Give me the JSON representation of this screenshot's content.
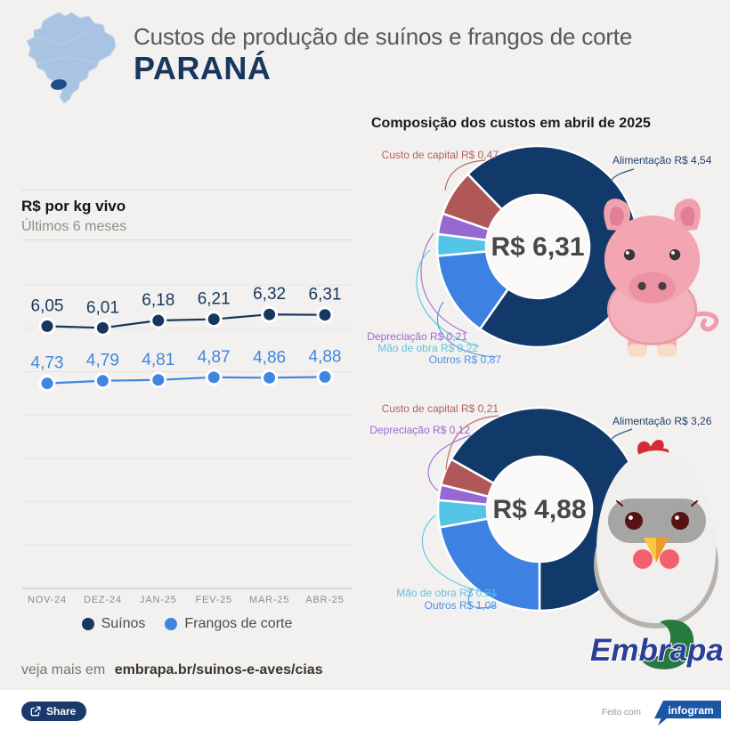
{
  "header": {
    "title": "Custos de produção de suínos e frangos de corte",
    "region": "PARANÁ"
  },
  "left_panel": {
    "title": "R$ por kg vivo",
    "subtitle": "Últimos 6 meses"
  },
  "right_panel": {
    "heading": "Composição dos custos em abril de 2025"
  },
  "chart_data": [
    {
      "type": "line",
      "title": "R$ por kg vivo",
      "subtitle": "Últimos 6 meses",
      "categories": [
        "NOV-24",
        "DEZ-24",
        "JAN-25",
        "FEV-25",
        "MAR-25",
        "ABR-25"
      ],
      "series": [
        {
          "name": "Suínos",
          "color": "#17375e",
          "values": [
            6.05,
            6.01,
            6.18,
            6.21,
            6.32,
            6.31
          ],
          "point_labels": [
            "6,05",
            "6,01",
            "6,18",
            "6,21",
            "6,32",
            "6,31"
          ]
        },
        {
          "name": "Frangos de corte",
          "color": "#4086e0",
          "values": [
            4.73,
            4.79,
            4.81,
            4.87,
            4.86,
            4.88
          ],
          "point_labels": [
            "4,73",
            "4,79",
            "4,81",
            "4,87",
            "4,86",
            "4,88"
          ]
        }
      ],
      "ylim": [
        0,
        7
      ],
      "grid": true,
      "legend_position": "bottom"
    },
    {
      "type": "pie",
      "subtype": "donut",
      "title": "Composição dos custos em abril de 2025",
      "animal": "pig",
      "center_label": "R$ 6,31",
      "total": 6.31,
      "start_angle": 316,
      "slices": [
        {
          "name": "Alimentação",
          "label": "Alimentação R$ 4,54",
          "value": 4.54,
          "color": "#113a6b"
        },
        {
          "name": "Outros",
          "label": "Outros R$ 0,87",
          "value": 0.87,
          "color": "#3d82e2"
        },
        {
          "name": "Mão de obra",
          "label": "Mão de obra R$ 0,22",
          "value": 0.22,
          "color": "#54c5e6"
        },
        {
          "name": "Depreciação",
          "label": "Depreciação R$ 0,21",
          "value": 0.21,
          "color": "#9668d2"
        },
        {
          "name": "Custo de capital",
          "label": "Custo de capital R$ 0,47",
          "value": 0.47,
          "color": "#b05858"
        }
      ]
    },
    {
      "type": "pie",
      "subtype": "donut",
      "animal": "chicken",
      "center_label": "R$ 4,88",
      "total": 4.88,
      "start_angle": 299.5,
      "slices": [
        {
          "name": "Alimentação",
          "label": "Alimentação R$ 3,26",
          "value": 3.26,
          "color": "#113a6b"
        },
        {
          "name": "Outros",
          "label": "Outros R$ 1,08",
          "value": 1.08,
          "color": "#3d82e2"
        },
        {
          "name": "Mão de obra",
          "label": "Mão de obra R$ 0,21",
          "value": 0.21,
          "color": "#54c5e6"
        },
        {
          "name": "Depreciação",
          "label": "Depreciação R$ 0,12",
          "value": 0.12,
          "color": "#9668d2"
        },
        {
          "name": "Custo de capital",
          "label": "Custo de capital R$ 0,21",
          "value": 0.21,
          "color": "#b05858"
        }
      ]
    }
  ],
  "footer": {
    "more_text": "veja mais em",
    "more_link": "embrapa.br/suinos-e-aves/cias",
    "logo_text": "Embrapa",
    "share_label": "Share",
    "made_with": "Feito com",
    "infogram_label": "infogram"
  },
  "colors": {
    "background": "#f3f1ef",
    "navy": "#17375e",
    "blue": "#4086e0",
    "cyan": "#54c5e6",
    "purple": "#9668d2",
    "brick_red": "#b05858",
    "map_light": "#a9c4e3",
    "map_highlight": "#1d4e8f"
  }
}
